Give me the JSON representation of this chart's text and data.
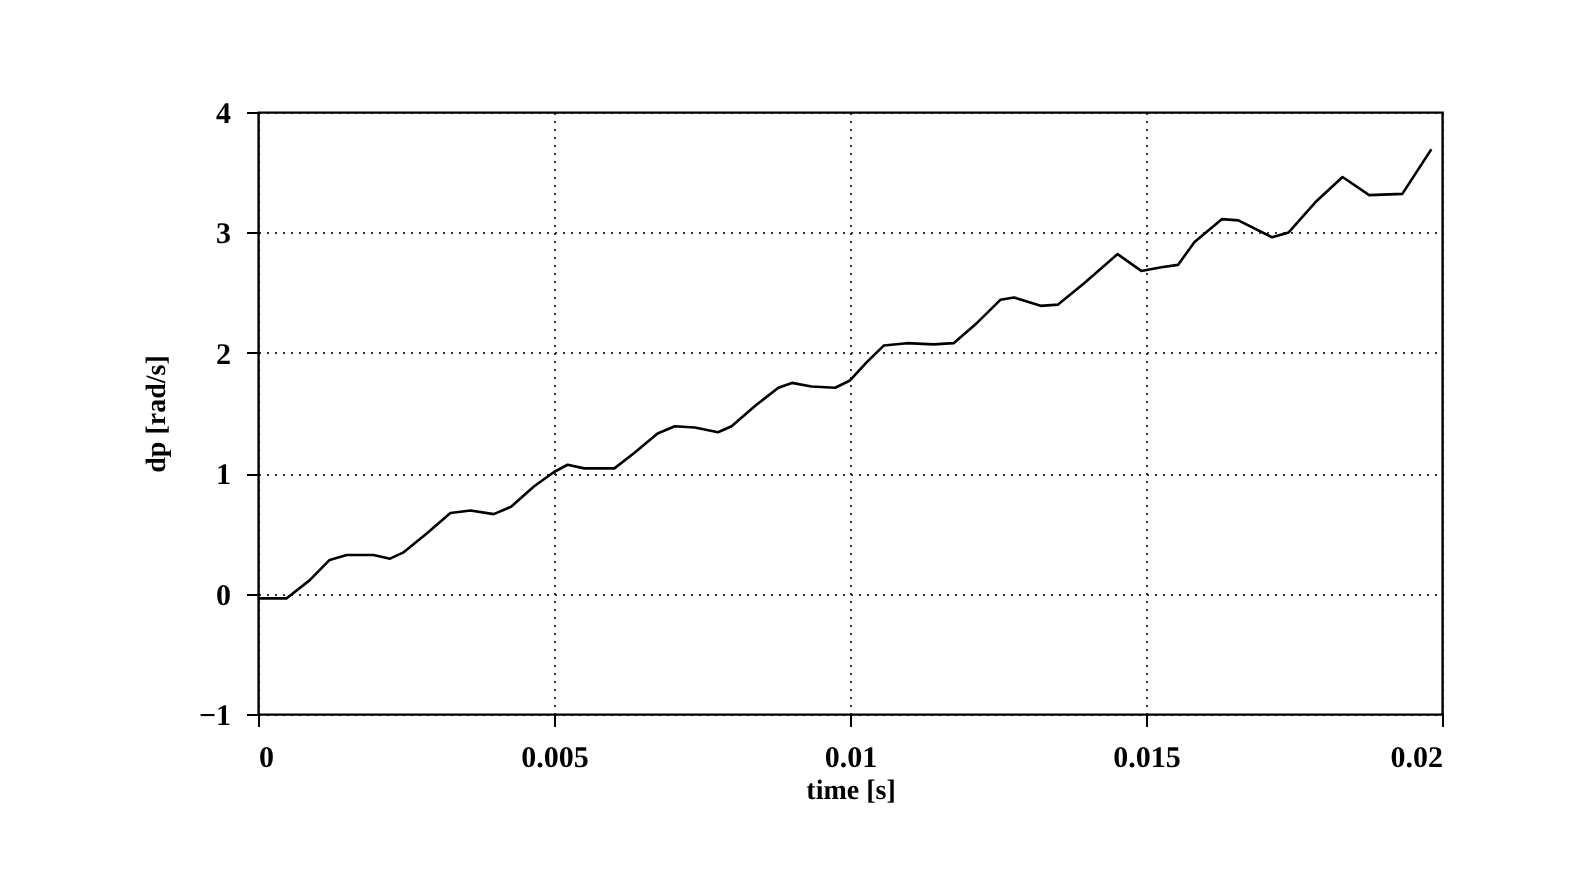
{
  "chart_data": {
    "type": "line",
    "xlabel": "time [s]",
    "ylabel": "dp [rad/s]",
    "xlim": [
      0,
      0.02
    ],
    "ylim": [
      -1,
      4
    ],
    "xticks": [
      0,
      0.005,
      0.01,
      0.015,
      0.02
    ],
    "yticks": [
      -1,
      0,
      1,
      2,
      3,
      4
    ],
    "grid": true,
    "line_style": "solid",
    "marker": "none",
    "series": [
      {
        "color": "#000000",
        "x": [
          0,
          0.00048,
          0.00087,
          0.00121,
          0.0015,
          0.00195,
          0.00223,
          0.00245,
          0.00285,
          0.00325,
          0.00359,
          0.00398,
          0.00427,
          0.00466,
          0.005,
          0.00523,
          0.00551,
          0.00602,
          0.00636,
          0.00675,
          0.00704,
          0.00738,
          0.00777,
          0.008,
          0.0084,
          0.00879,
          0.00902,
          0.00935,
          0.00975,
          0.01,
          0.01028,
          0.01057,
          0.01096,
          0.01141,
          0.01175,
          0.01215,
          0.01254,
          0.01277,
          0.01322,
          0.01351,
          0.01396,
          0.01452,
          0.01492,
          0.01526,
          0.01554,
          0.01582,
          0.01628,
          0.01656,
          0.01713,
          0.01741,
          0.01786,
          0.01832,
          0.01877,
          0.01933,
          0.01982
        ],
        "values": [
          -0.04,
          -0.04,
          0.11,
          0.28,
          0.32,
          0.32,
          0.29,
          0.34,
          0.5,
          0.67,
          0.69,
          0.66,
          0.72,
          0.89,
          1.01,
          1.07,
          1.04,
          1.04,
          1.17,
          1.33,
          1.39,
          1.38,
          1.34,
          1.39,
          1.56,
          1.71,
          1.75,
          1.72,
          1.71,
          1.77,
          1.92,
          2.06,
          2.08,
          2.07,
          2.08,
          2.25,
          2.44,
          2.46,
          2.39,
          2.4,
          2.58,
          2.82,
          2.68,
          2.71,
          2.73,
          2.92,
          3.11,
          3.1,
          2.96,
          3.0,
          3.25,
          3.46,
          3.31,
          3.32,
          3.69
        ]
      }
    ]
  }
}
